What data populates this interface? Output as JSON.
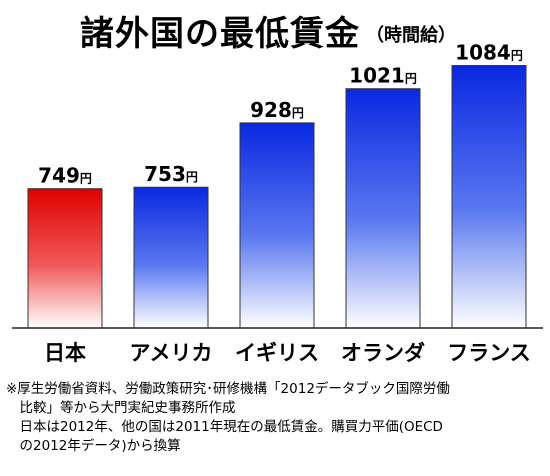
{
  "title": "諸外国の最低賃金",
  "subtitle": "（時間給）",
  "colors": {
    "japan": "#e81010",
    "others": "#1030e8"
  },
  "chart_data": {
    "type": "bar",
    "title": "諸外国の最低賃金",
    "subtitle": "（時間給）",
    "categories": [
      "日本",
      "アメリカ",
      "イギリス",
      "オランダ",
      "フランス"
    ],
    "values": [
      749,
      753,
      928,
      1021,
      1084
    ],
    "value_labels": [
      "749",
      "753",
      "928",
      "1021",
      "1084"
    ],
    "unit": "円",
    "ylim": [
      370,
      1110
    ],
    "grid": false,
    "legend": "none"
  },
  "notes": [
    "※厚生労働省資料、労働政策研究･研修機構「2012データブック国際労働",
    "　比較」等から大門実紀史事務所作成",
    "　日本は2012年、他の国は2011年現在の最低賃金。購買力平価(OECD",
    "　の2012年データ)から換算"
  ]
}
